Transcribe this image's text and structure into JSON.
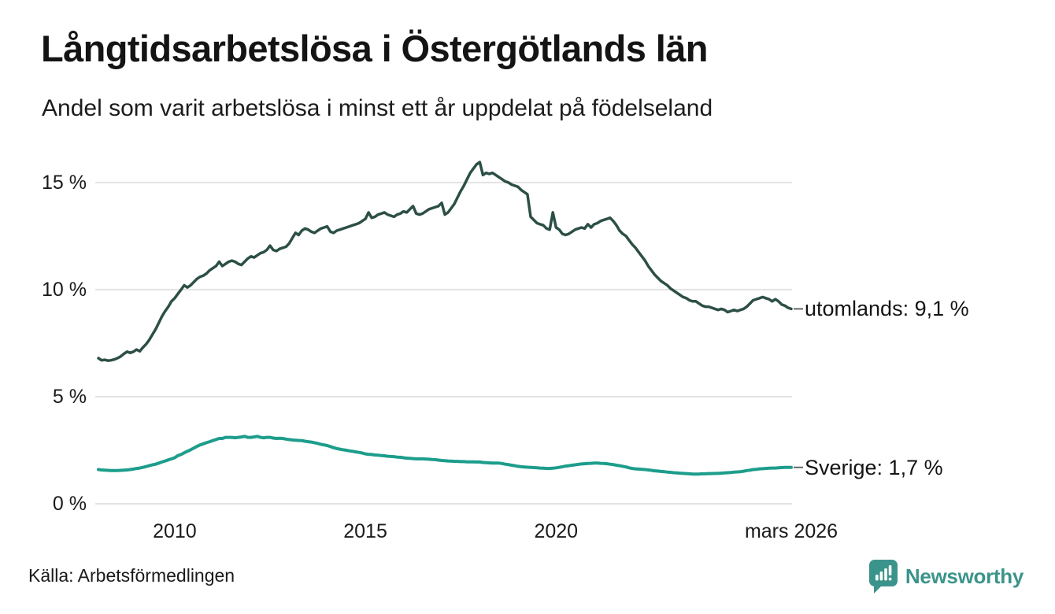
{
  "header": {
    "title": "Långtidsarbetslösa i Östergötlands län",
    "subtitle": "Andel som varit arbetslösa i minst ett år uppdelat på födelseland"
  },
  "footer": {
    "source": "Källa: Arbetsförmedlingen",
    "brand": "Newsworthy",
    "brand_color": "#3b948b",
    "brand_icon": "newsworthy-speech-bubble-bar-chart-icon"
  },
  "chart_data": {
    "type": "line",
    "title": "Långtidsarbetslösa i Östergötlands län",
    "subtitle": "Andel som varit arbetslösa i minst ett år uppdelat på födelseland",
    "unit": "%",
    "grid": true,
    "legend_position": "right-end-labels",
    "x_start_year": 2008,
    "x_frequency": "monthly",
    "x_axis": {
      "range": [
        2008,
        2026.167
      ],
      "ticks": [
        {
          "value": 2010,
          "label": "2010"
        },
        {
          "value": 2015,
          "label": "2015"
        },
        {
          "value": 2020,
          "label": "2020"
        },
        {
          "value": 2026.167,
          "label": "mars 2026"
        }
      ]
    },
    "y_axis": {
      "range": [
        0,
        16.5
      ],
      "ticks": [
        {
          "value": 15,
          "label": "15 %"
        },
        {
          "value": 10,
          "label": "10 %"
        },
        {
          "value": 5,
          "label": "5 %"
        },
        {
          "value": 0,
          "label": "0 %"
        }
      ]
    },
    "grid_color": "#e3e3e3",
    "leader_color": "#666666",
    "series": [
      {
        "name": "utomlands",
        "end_label": "utomlands: 9,1 %",
        "last_value": 9.1,
        "color": "#2c4f46",
        "line_width": 3.5,
        "values": [
          6.8,
          6.7,
          6.72,
          6.68,
          6.7,
          6.74,
          6.8,
          6.88,
          7.0,
          7.1,
          7.05,
          7.1,
          7.2,
          7.12,
          7.3,
          7.45,
          7.65,
          7.9,
          8.15,
          8.45,
          8.75,
          9.0,
          9.2,
          9.45,
          9.6,
          9.8,
          10.0,
          10.2,
          10.1,
          10.2,
          10.35,
          10.5,
          10.6,
          10.65,
          10.75,
          10.9,
          11.0,
          11.1,
          11.3,
          11.1,
          11.2,
          11.3,
          11.35,
          11.3,
          11.2,
          11.15,
          11.3,
          11.45,
          11.55,
          11.5,
          11.6,
          11.7,
          11.75,
          11.85,
          12.05,
          11.85,
          11.8,
          11.9,
          11.95,
          12.0,
          12.15,
          12.4,
          12.65,
          12.55,
          12.75,
          12.85,
          12.8,
          12.7,
          12.65,
          12.75,
          12.85,
          12.9,
          12.95,
          12.7,
          12.65,
          12.75,
          12.8,
          12.85,
          12.9,
          12.95,
          13.0,
          13.05,
          13.1,
          13.2,
          13.3,
          13.6,
          13.35,
          13.4,
          13.5,
          13.55,
          13.6,
          13.5,
          13.45,
          13.4,
          13.5,
          13.55,
          13.65,
          13.6,
          13.75,
          13.9,
          13.55,
          13.5,
          13.55,
          13.65,
          13.75,
          13.8,
          13.85,
          13.9,
          14.05,
          13.5,
          13.6,
          13.8,
          14.0,
          14.3,
          14.6,
          14.85,
          15.15,
          15.45,
          15.65,
          15.85,
          15.95,
          15.35,
          15.45,
          15.4,
          15.45,
          15.35,
          15.25,
          15.15,
          15.05,
          15.0,
          14.9,
          14.85,
          14.8,
          14.65,
          14.55,
          14.45,
          13.4,
          13.25,
          13.1,
          13.05,
          13.0,
          12.85,
          12.8,
          13.6,
          12.9,
          12.8,
          12.6,
          12.55,
          12.6,
          12.7,
          12.8,
          12.85,
          12.9,
          12.85,
          13.05,
          12.9,
          13.05,
          13.1,
          13.2,
          13.25,
          13.3,
          13.35,
          13.2,
          13.0,
          12.75,
          12.6,
          12.5,
          12.3,
          12.1,
          11.95,
          11.75,
          11.55,
          11.35,
          11.1,
          10.9,
          10.7,
          10.55,
          10.4,
          10.3,
          10.2,
          10.05,
          9.95,
          9.85,
          9.75,
          9.65,
          9.6,
          9.5,
          9.45,
          9.45,
          9.35,
          9.25,
          9.2,
          9.2,
          9.15,
          9.1,
          9.05,
          9.1,
          9.05,
          8.95,
          9.0,
          9.05,
          9.0,
          9.05,
          9.1,
          9.2,
          9.35,
          9.5,
          9.55,
          9.6,
          9.65,
          9.6,
          9.55,
          9.45,
          9.55,
          9.45,
          9.3,
          9.25,
          9.15,
          9.1
        ]
      },
      {
        "name": "Sverige",
        "end_label": "Sverige: 1,7 %",
        "last_value": 1.7,
        "color": "#1d9d8b",
        "line_width": 4,
        "values": [
          1.6,
          1.58,
          1.57,
          1.56,
          1.55,
          1.55,
          1.55,
          1.56,
          1.57,
          1.58,
          1.6,
          1.62,
          1.65,
          1.67,
          1.7,
          1.74,
          1.78,
          1.82,
          1.85,
          1.9,
          1.95,
          2.0,
          2.05,
          2.1,
          2.15,
          2.25,
          2.3,
          2.38,
          2.45,
          2.52,
          2.6,
          2.68,
          2.75,
          2.8,
          2.85,
          2.9,
          2.95,
          3.0,
          3.05,
          3.05,
          3.1,
          3.1,
          3.1,
          3.08,
          3.1,
          3.12,
          3.15,
          3.1,
          3.1,
          3.12,
          3.15,
          3.1,
          3.08,
          3.1,
          3.1,
          3.07,
          3.05,
          3.06,
          3.05,
          3.02,
          3.0,
          2.98,
          2.97,
          2.96,
          2.95,
          2.92,
          2.9,
          2.88,
          2.85,
          2.82,
          2.78,
          2.75,
          2.72,
          2.67,
          2.62,
          2.58,
          2.55,
          2.52,
          2.5,
          2.47,
          2.45,
          2.42,
          2.4,
          2.37,
          2.33,
          2.31,
          2.3,
          2.28,
          2.27,
          2.25,
          2.24,
          2.22,
          2.21,
          2.2,
          2.18,
          2.17,
          2.15,
          2.13,
          2.12,
          2.11,
          2.1,
          2.1,
          2.1,
          2.09,
          2.08,
          2.07,
          2.06,
          2.04,
          2.02,
          2.01,
          2.0,
          1.99,
          1.98,
          1.98,
          1.97,
          1.97,
          1.96,
          1.96,
          1.96,
          1.95,
          1.95,
          1.93,
          1.92,
          1.91,
          1.9,
          1.9,
          1.9,
          1.88,
          1.85,
          1.83,
          1.8,
          1.78,
          1.75,
          1.73,
          1.72,
          1.71,
          1.7,
          1.69,
          1.68,
          1.67,
          1.66,
          1.65,
          1.65,
          1.66,
          1.68,
          1.7,
          1.73,
          1.76,
          1.78,
          1.8,
          1.82,
          1.84,
          1.86,
          1.87,
          1.88,
          1.89,
          1.9,
          1.9,
          1.89,
          1.88,
          1.87,
          1.85,
          1.83,
          1.8,
          1.78,
          1.75,
          1.72,
          1.68,
          1.65,
          1.63,
          1.62,
          1.61,
          1.6,
          1.58,
          1.56,
          1.54,
          1.53,
          1.51,
          1.5,
          1.48,
          1.47,
          1.45,
          1.44,
          1.43,
          1.42,
          1.41,
          1.4,
          1.39,
          1.39,
          1.39,
          1.4,
          1.4,
          1.41,
          1.41,
          1.42,
          1.42,
          1.43,
          1.44,
          1.45,
          1.46,
          1.48,
          1.49,
          1.5,
          1.52,
          1.55,
          1.57,
          1.6,
          1.61,
          1.63,
          1.64,
          1.65,
          1.66,
          1.67,
          1.67,
          1.68,
          1.69,
          1.7,
          1.7,
          1.7
        ]
      }
    ]
  }
}
